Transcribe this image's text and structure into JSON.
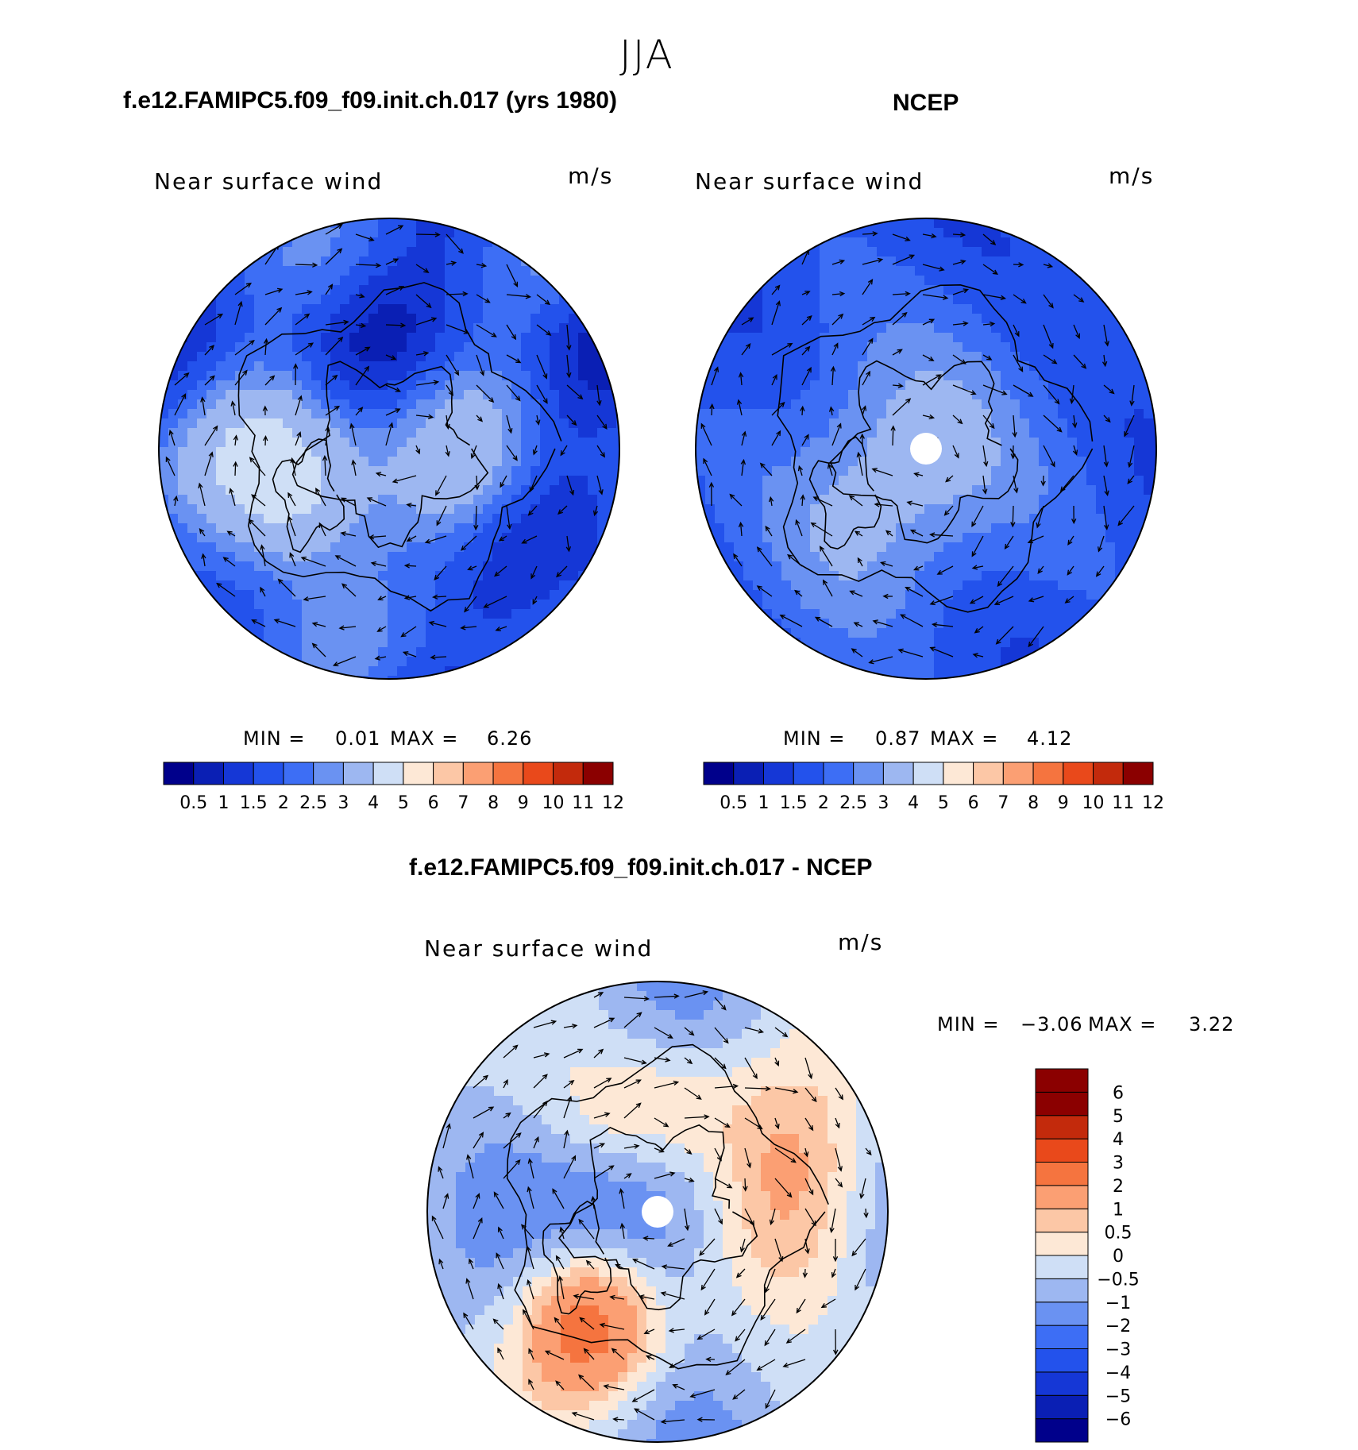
{
  "figure": {
    "season": "JJA",
    "colors": {
      "land": "#000000",
      "arrow": "#000000",
      "pole": "#ffffff"
    }
  },
  "panels": [
    {
      "title": "f.e12.FAMIPC5.f09_f09.init.ch.017 (yrs 1980)",
      "subtitle": "Near surface wind",
      "units": "m/s",
      "min_label": "MIN =",
      "min_value": "0.01",
      "max_label": "MAX =",
      "max_value": "6.26"
    },
    {
      "title": "NCEP",
      "subtitle": "Near surface wind",
      "units": "m/s",
      "min_label": "MIN =",
      "min_value": "0.87",
      "max_label": "MAX =",
      "max_value": "4.12"
    },
    {
      "title": "f.e12.FAMIPC5.f09_f09.init.ch.017 - NCEP",
      "subtitle": "Near surface wind",
      "units": "m/s",
      "min_label": "MIN =",
      "min_value": "−3.06",
      "max_label": "MAX =",
      "max_value": "3.22"
    }
  ],
  "chart_data": [
    {
      "type": "heatmap",
      "projection": "north-polar-stereographic",
      "title": "f.e12.FAMIPC5.f09_f09.init.ch.017 (yrs 1980)",
      "variable": "Near surface wind",
      "units": "m/s",
      "min": 0.01,
      "max": 6.26,
      "overlay": "wind vectors",
      "colorbar": {
        "orientation": "horizontal",
        "levels": [
          0.5,
          1,
          1.5,
          2,
          2.5,
          3,
          4,
          5,
          6,
          7,
          8,
          9,
          10,
          11,
          12
        ],
        "tick_labels": [
          "0.5",
          "1",
          "1.5",
          "2",
          "2.5",
          "3",
          "4",
          "5",
          "6",
          "7",
          "8",
          "9",
          "10",
          "11",
          "12"
        ],
        "colors": [
          "#00008b",
          "#0a1fb4",
          "#1537d6",
          "#2352ec",
          "#3d6ef5",
          "#6a92f2",
          "#9db7f1",
          "#cfdff6",
          "#fde8d6",
          "#fcc7a6",
          "#fb9f73",
          "#f5743f",
          "#e9491b",
          "#c32a0c",
          "#8b0000"
        ]
      }
    },
    {
      "type": "heatmap",
      "projection": "north-polar-stereographic",
      "title": "NCEP",
      "variable": "Near surface wind",
      "units": "m/s",
      "min": 0.87,
      "max": 4.12,
      "overlay": "wind vectors",
      "colorbar": {
        "orientation": "horizontal",
        "levels": [
          0.5,
          1,
          1.5,
          2,
          2.5,
          3,
          4,
          5,
          6,
          7,
          8,
          9,
          10,
          11,
          12
        ],
        "tick_labels": [
          "0.5",
          "1",
          "1.5",
          "2",
          "2.5",
          "3",
          "4",
          "5",
          "6",
          "7",
          "8",
          "9",
          "10",
          "11",
          "12"
        ],
        "colors": [
          "#00008b",
          "#0a1fb4",
          "#1537d6",
          "#2352ec",
          "#3d6ef5",
          "#6a92f2",
          "#9db7f1",
          "#cfdff6",
          "#fde8d6",
          "#fcc7a6",
          "#fb9f73",
          "#f5743f",
          "#e9491b",
          "#c32a0c",
          "#8b0000"
        ]
      }
    },
    {
      "type": "heatmap",
      "projection": "north-polar-stereographic",
      "title": "f.e12.FAMIPC5.f09_f09.init.ch.017 - NCEP",
      "variable": "Near surface wind",
      "units": "m/s",
      "min": -3.06,
      "max": 3.22,
      "overlay": "wind vectors",
      "colorbar": {
        "orientation": "vertical",
        "levels": [
          -6,
          -5,
          -4,
          -3,
          -2,
          -1,
          -0.5,
          0,
          0.5,
          1,
          2,
          3,
          4,
          5,
          6
        ],
        "tick_labels": [
          "−6",
          "−5",
          "−4",
          "−3",
          "−2",
          "−1",
          "−0.5",
          "0",
          "0.5",
          "1",
          "2",
          "3",
          "4",
          "5",
          "6"
        ],
        "colors": [
          "#00008b",
          "#0a1fb4",
          "#1537d6",
          "#2352ec",
          "#3d6ef5",
          "#6a92f2",
          "#9db7f1",
          "#cfdff6",
          "#fde8d6",
          "#fcc7a6",
          "#fb9f73",
          "#f5743f",
          "#e9491b",
          "#c32a0c",
          "#8b0000",
          "#8b0000"
        ]
      }
    }
  ]
}
